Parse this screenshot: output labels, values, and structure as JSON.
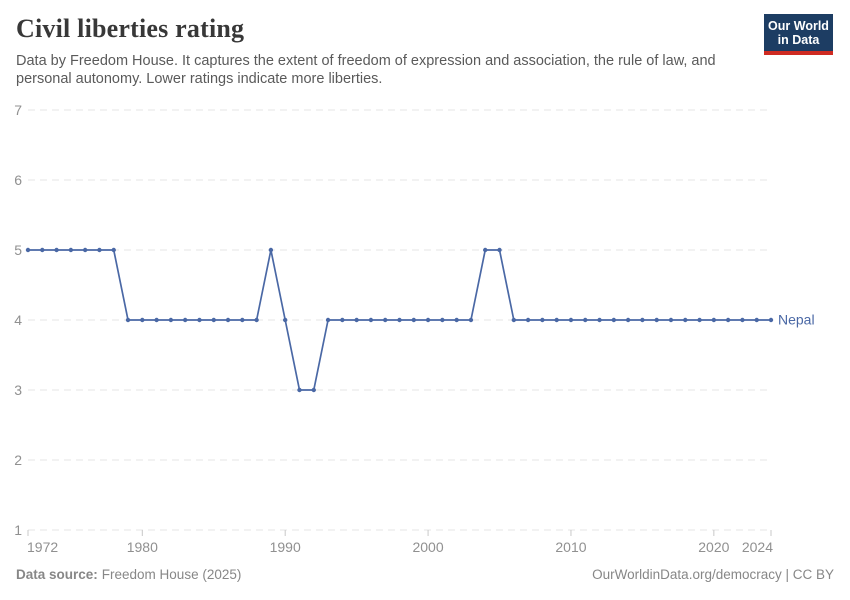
{
  "header": {
    "title": "Civil liberties rating",
    "subtitle": "Data by Freedom House. It captures the extent of freedom of expression and association, the rule of law, and personal autonomy. Lower ratings indicate more liberties.",
    "logo": {
      "line1": "Our World",
      "line2": "in Data"
    }
  },
  "chart_data": {
    "type": "line",
    "title": "Civil liberties rating",
    "xlabel": "",
    "ylabel": "",
    "ylim": [
      1,
      7
    ],
    "yticks": [
      1,
      2,
      3,
      4,
      5,
      6,
      7
    ],
    "xticks": [
      1972,
      1980,
      1990,
      2000,
      2010,
      2020,
      2024
    ],
    "grid": "horizontal-dashed",
    "legend_position": "end-of-line-label",
    "x": [
      1972,
      1973,
      1974,
      1975,
      1976,
      1977,
      1978,
      1979,
      1980,
      1981,
      1982,
      1983,
      1984,
      1985,
      1986,
      1987,
      1988,
      1989,
      1990,
      1991,
      1992,
      1993,
      1994,
      1995,
      1996,
      1997,
      1998,
      1999,
      2000,
      2001,
      2002,
      2003,
      2004,
      2005,
      2006,
      2007,
      2008,
      2009,
      2010,
      2011,
      2012,
      2013,
      2014,
      2015,
      2016,
      2017,
      2018,
      2019,
      2020,
      2021,
      2022,
      2023,
      2024
    ],
    "series": [
      {
        "name": "Nepal",
        "color": "#4a68a5",
        "values": [
          5,
          5,
          5,
          5,
          5,
          5,
          5,
          4,
          4,
          4,
          4,
          4,
          4,
          4,
          4,
          4,
          4,
          5,
          4,
          3,
          3,
          4,
          4,
          4,
          4,
          4,
          4,
          4,
          4,
          4,
          4,
          4,
          5,
          5,
          4,
          4,
          4,
          4,
          4,
          4,
          4,
          4,
          4,
          4,
          4,
          4,
          4,
          4,
          4,
          4,
          4,
          4,
          4
        ]
      }
    ]
  },
  "footer": {
    "datasource_label": "Data source:",
    "datasource_value": "Freedom House (2025)",
    "rights": "OurWorldinData.org/democracy | CC BY"
  },
  "colors": {
    "line": "#4a68a5",
    "grid": "#e4e4e4",
    "tick": "#c8c8c8",
    "axis_text": "#909090",
    "logo_bg": "#1d3d63",
    "logo_stripe": "#cf2b22"
  }
}
